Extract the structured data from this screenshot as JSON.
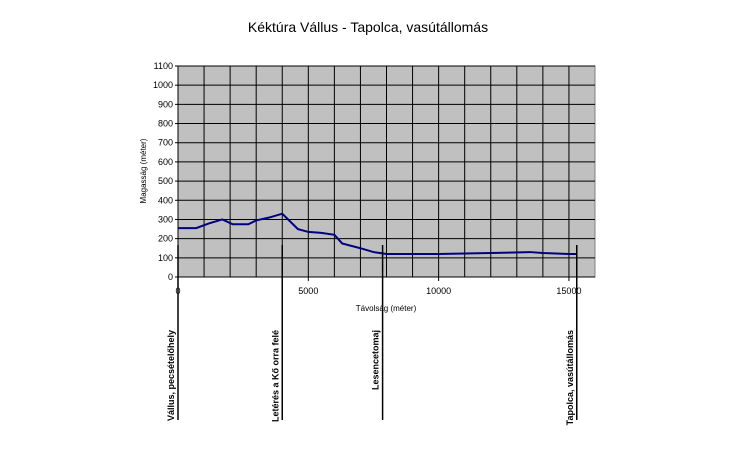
{
  "chart_data": {
    "type": "line",
    "title": "Kéktúra Vállus - Tapolca, vasútállomás",
    "x_label": "Távolság (méter)",
    "y_label": "Magasság (méter)",
    "x": [
      0,
      700,
      1200,
      1700,
      2100,
      2700,
      3000,
      3500,
      4000,
      4300,
      4600,
      5000,
      5500,
      6000,
      6300,
      7000,
      7500,
      8000,
      10000,
      12000,
      13500,
      14000,
      15000,
      15300
    ],
    "series": [
      {
        "name": "Magasság",
        "color": "#000080",
        "values": [
          255,
          255,
          280,
          300,
          275,
          275,
          295,
          310,
          330,
          290,
          250,
          235,
          230,
          220,
          175,
          150,
          130,
          120,
          120,
          125,
          130,
          125,
          120,
          120
        ]
      }
    ],
    "xlim": [
      0,
      16000
    ],
    "xticks": [
      0,
      5000,
      10000,
      15000
    ],
    "ylim": [
      0,
      1100
    ],
    "yticks": [
      0,
      100,
      200,
      300,
      400,
      500,
      600,
      700,
      800,
      900,
      1000,
      1100
    ],
    "grid_step_x": 1000,
    "grid": true,
    "markers": [
      {
        "x": 0,
        "label": "Vállus, pecsételőhely"
      },
      {
        "x": 4000,
        "label": "Letérés a Kő orra felé"
      },
      {
        "x": 7850,
        "label": "Lesencetomaj"
      },
      {
        "x": 15300,
        "label": "Tapolca, vasútállomás"
      }
    ]
  }
}
